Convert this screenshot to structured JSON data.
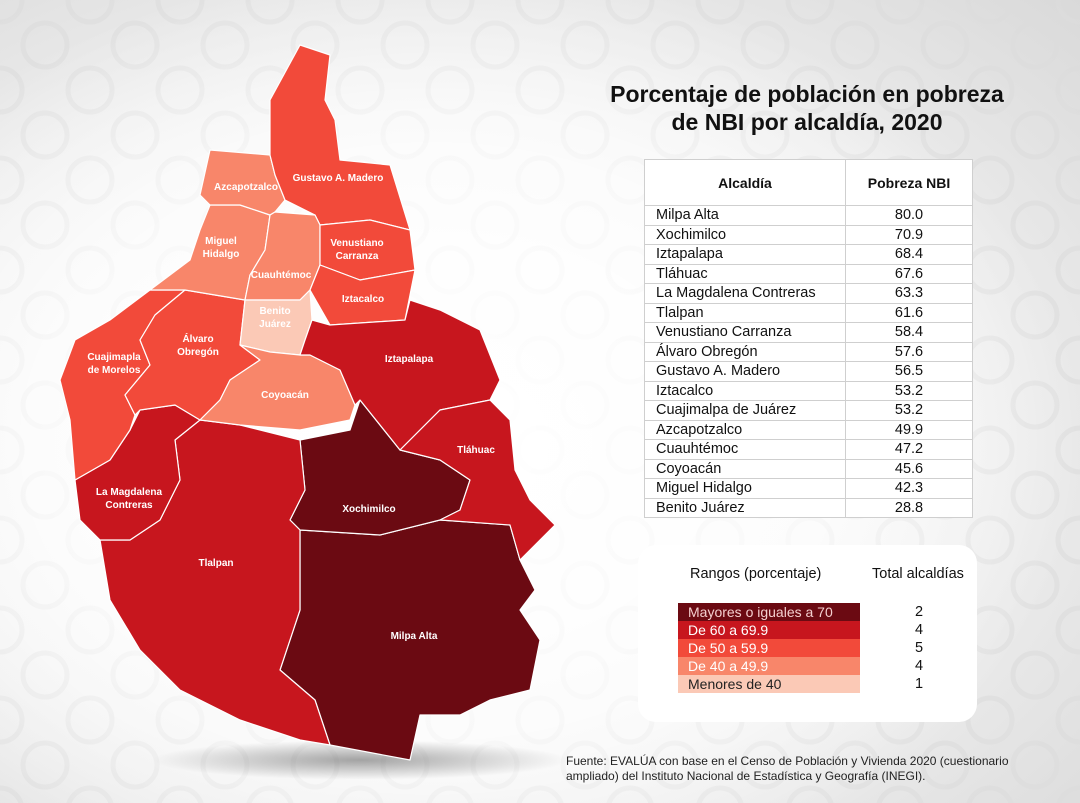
{
  "title": {
    "line1": "Porcentaje de población en pobreza",
    "line2": "de NBI por alcaldía, 2020"
  },
  "table": {
    "header_col1": "Alcaldía",
    "header_col2": "Pobreza NBI",
    "rows": [
      {
        "name": "Milpa Alta",
        "value": "80.0"
      },
      {
        "name": "Xochimilco",
        "value": "70.9"
      },
      {
        "name": "Iztapalapa",
        "value": "68.4"
      },
      {
        "name": "Tláhuac",
        "value": "67.6"
      },
      {
        "name": "La Magdalena Contreras",
        "value": "63.3"
      },
      {
        "name": "Tlalpan",
        "value": "61.6"
      },
      {
        "name": "Venustiano Carranza",
        "value": "58.4"
      },
      {
        "name": "Álvaro Obregón",
        "value": "57.6"
      },
      {
        "name": "Gustavo A. Madero",
        "value": "56.5"
      },
      {
        "name": "Iztacalco",
        "value": "53.2"
      },
      {
        "name": "Cuajimalpa de Juárez",
        "value": "53.2"
      },
      {
        "name": "Azcapotzalco",
        "value": "49.9"
      },
      {
        "name": "Cuauhtémoc",
        "value": "47.2"
      },
      {
        "name": "Coyoacán",
        "value": "45.6"
      },
      {
        "name": "Miguel Hidalgo",
        "value": "42.3"
      },
      {
        "name": "Benito Juárez",
        "value": "28.8"
      }
    ]
  },
  "legend": {
    "header_ranges": "Rangos (porcentaje)",
    "header_total": "Total alcaldías",
    "items": [
      {
        "label": "Mayores o iguales a 70",
        "count": "2",
        "color": "#6b0a12",
        "text_color": "#f4cfcf"
      },
      {
        "label": "De 60 a 69.9",
        "count": "4",
        "color": "#c7161e",
        "text_color": "#ffffff"
      },
      {
        "label": "De 50 a 59.9",
        "count": "5",
        "color": "#f24a3a",
        "text_color": "#ffffff"
      },
      {
        "label": "De 40 a 49.9",
        "count": "4",
        "color": "#f8866a",
        "text_color": "#ffffff"
      },
      {
        "label": "Menores de 40",
        "count": "1",
        "color": "#fbc9b6",
        "text_color": "#222222"
      }
    ]
  },
  "map": {
    "regions": [
      {
        "id": "gustavo-a-madero",
        "label": "Gustavo A. Madero",
        "color": "#f24a3a"
      },
      {
        "id": "azcapotzalco",
        "label": "Azcapotzalco",
        "color": "#f8866a"
      },
      {
        "id": "miguel-hidalgo",
        "label": "Miguel\nHidalgo",
        "color": "#f8866a"
      },
      {
        "id": "cuauhtemoc",
        "label": "Cuauhtémoc",
        "color": "#f8866a"
      },
      {
        "id": "venustiano-carranza",
        "label": "Venustiano\nCarranza",
        "color": "#f24a3a"
      },
      {
        "id": "iztacalco",
        "label": "Iztacalco",
        "color": "#f24a3a"
      },
      {
        "id": "benito-juarez",
        "label": "Benito\nJuárez",
        "color": "#fbc9b6"
      },
      {
        "id": "cuajimalpa",
        "label": "Cuajimapla\nde Morelos",
        "color": "#f24a3a"
      },
      {
        "id": "alvaro-obregon",
        "label": "Álvaro\nObregón",
        "color": "#f24a3a"
      },
      {
        "id": "coyoacan",
        "label": "Coyoacán",
        "color": "#f8866a"
      },
      {
        "id": "iztapalapa",
        "label": "Iztapalapa",
        "color": "#c7161e"
      },
      {
        "id": "tlahuac",
        "label": "Tláhuac",
        "color": "#c7161e"
      },
      {
        "id": "magdalena-contreras",
        "label": "La Magdalena\nContreras",
        "color": "#c7161e"
      },
      {
        "id": "tlalpan",
        "label": "Tlalpan",
        "color": "#c7161e"
      },
      {
        "id": "xochimilco",
        "label": "Xochimilco",
        "color": "#6b0a12"
      },
      {
        "id": "milpa-alta",
        "label": "Milpa Alta",
        "color": "#6b0a12"
      }
    ]
  },
  "source": {
    "line1": "Fuente: EVALÚA con base en el Censo de  Población y Vivienda 2020 (cuestionario",
    "line2": "ampliado) del Instituto Nacional de Estadística y Geografía (INEGI)."
  }
}
